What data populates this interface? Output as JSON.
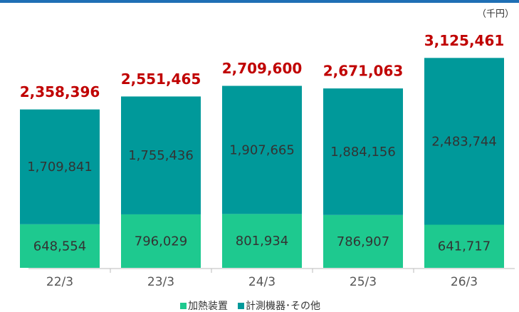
{
  "chart_data": {
    "type": "stacked_bar",
    "unit_label": "（千円）",
    "categories": [
      "22/3",
      "23/3",
      "24/3",
      "25/3",
      "26/3"
    ],
    "series": [
      {
        "name": "加熱装置",
        "color": "#1ec98f",
        "values": [
          648554,
          796029,
          801934,
          786907,
          641717
        ]
      },
      {
        "name": "計測機器･その他",
        "color": "#00999a",
        "values": [
          1709841,
          1755436,
          1907665,
          1884156,
          2483744
        ]
      }
    ],
    "totals": [
      2358396,
      2551465,
      2709600,
      2671063,
      3125461
    ],
    "totals_color": "#c00000",
    "ylim": [
      0,
      3500000
    ]
  }
}
